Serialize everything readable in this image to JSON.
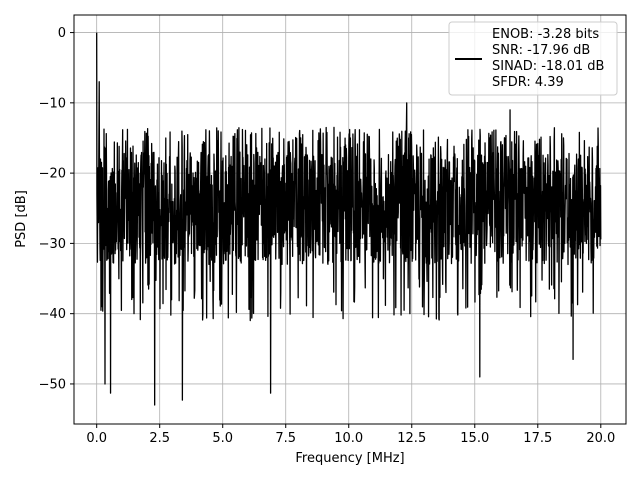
{
  "chart_data": {
    "type": "line",
    "xlabel": "Frequency [MHz]",
    "ylabel": "PSD [dB]",
    "xlim": [
      -0.9,
      21.0
    ],
    "ylim": [
      -55.7,
      2.5
    ],
    "x_ticks": [
      0.0,
      2.5,
      5.0,
      7.5,
      10.0,
      12.5,
      15.0,
      17.5,
      20.0
    ],
    "x_tick_labels": [
      "0.0",
      "2.5",
      "5.0",
      "7.5",
      "10.0",
      "12.5",
      "15.0",
      "17.5",
      "20.0"
    ],
    "y_ticks": [
      0,
      -10,
      -20,
      -30,
      -40,
      -50
    ],
    "y_tick_labels": [
      "0",
      "−10",
      "−20",
      "−30",
      "−40",
      "−50"
    ],
    "grid": true,
    "legend_placement": "top-right",
    "legend_lines": [
      "ENOB: -3.28 bits",
      "SNR: -17.96 dB",
      "SINAD: -18.01 dB",
      "SFDR: 4.39"
    ],
    "series": [
      {
        "color": "#000000",
        "x_range": [
          0.0,
          20.0
        ],
        "peak": {
          "x": 0.0,
          "y": 0.0
        },
        "typical_upper_envelope": -13.5,
        "typical_lower_envelope": -35.0,
        "notable_points": [
          {
            "x": 0.1,
            "y": -7.0
          },
          {
            "x": 0.15,
            "y": -18.0
          },
          {
            "x": 0.2,
            "y": -39.0
          },
          {
            "x": 0.33,
            "y": -50.0
          },
          {
            "x": 0.55,
            "y": -51.3
          },
          {
            "x": 2.3,
            "y": -53.0
          },
          {
            "x": 3.4,
            "y": -52.3
          },
          {
            "x": 6.9,
            "y": -51.3
          },
          {
            "x": 15.2,
            "y": -49.0
          },
          {
            "x": 18.9,
            "y": -46.5
          },
          {
            "x": 12.3,
            "y": -10.0
          },
          {
            "x": 16.4,
            "y": -11.0
          }
        ]
      }
    ]
  }
}
